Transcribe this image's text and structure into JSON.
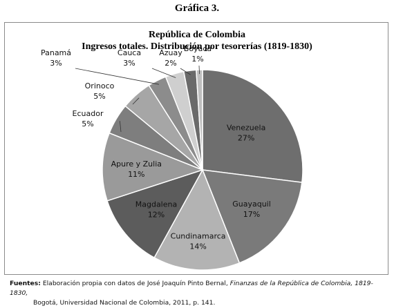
{
  "figure_label": "Gráfica 3.",
  "chart_data": {
    "type": "pie",
    "title": "República de Colombia",
    "subtitle": "Ingresos totales. Distribución por tesorerías (1819-1830)",
    "slices": [
      {
        "name": "Venezuela",
        "value": 27,
        "pct_label": "27%",
        "color": "#6e6e6e"
      },
      {
        "name": "Guayaquil",
        "value": 17,
        "pct_label": "17%",
        "color": "#7a7a7a"
      },
      {
        "name": "Cundinamarca",
        "value": 14,
        "pct_label": "14%",
        "color": "#b3b3b3"
      },
      {
        "name": "Magdalena",
        "value": 12,
        "pct_label": "12%",
        "color": "#5c5c5c"
      },
      {
        "name": "Apure y Zulia",
        "value": 11,
        "pct_label": "11%",
        "color": "#9a9a9a"
      },
      {
        "name": "Ecuador",
        "value": 5,
        "pct_label": "5%",
        "color": "#7e7e7e"
      },
      {
        "name": "Orinoco",
        "value": 5,
        "pct_label": "5%",
        "color": "#a6a6a6"
      },
      {
        "name": "Panamá",
        "value": 3,
        "pct_label": "3%",
        "color": "#8c8c8c"
      },
      {
        "name": "Cauca",
        "value": 3,
        "pct_label": "3%",
        "color": "#cfcfcf"
      },
      {
        "name": "Azuay",
        "value": 2,
        "pct_label": "2%",
        "color": "#6a6a6a"
      },
      {
        "name": "Boyacá",
        "value": 1,
        "pct_label": "1%",
        "color": "#bfbfbf"
      }
    ]
  },
  "source": {
    "prefix": "Fuentes:",
    "text_before": "Elaboración propia con datos de José Joaquín Pinto Bernal,",
    "italic_title": "Finanzas de la República de Colombia, 1819-1830,",
    "text_after": "Bogotá, Universidad Nacional de Colombia, 2011, p. 141."
  }
}
